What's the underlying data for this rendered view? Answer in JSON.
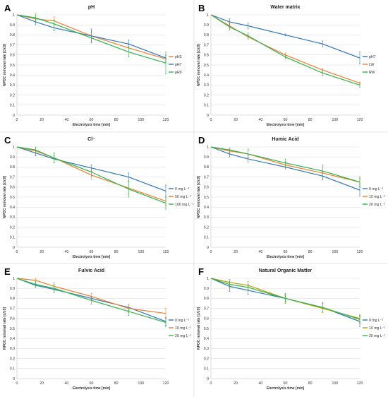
{
  "colors": {
    "blue": "#2e75b6",
    "orange": "#ed7d31",
    "green": "#2fb34a",
    "olive": "#b5a200"
  },
  "chart_data": [
    {
      "letter": "A",
      "type": "line",
      "title": "pH",
      "xlabel": "Electrolysis time [min]",
      "ylabel": "NPOC removal rate [c/c0]",
      "xlim": [
        0,
        120
      ],
      "ylim": [
        0,
        1
      ],
      "xticks": [
        "0",
        "20",
        "40",
        "60",
        "80",
        "100",
        "120"
      ],
      "yticks": [
        "0",
        "0.1",
        "0.2",
        "0.3",
        "0.4",
        "0.5",
        "0.6",
        "0.7",
        "0.8",
        "0.9",
        "1"
      ],
      "x": [
        0,
        15,
        30,
        60,
        90,
        120
      ],
      "series": [
        {
          "name": "pH3",
          "color": "#ed7d31",
          "values": [
            1,
            0.96,
            0.94,
            0.79,
            0.67,
            0.56
          ],
          "err": [
            0,
            0.03,
            0.04,
            0.05,
            0.04,
            0.04
          ]
        },
        {
          "name": "pH7",
          "color": "#2e75b6",
          "values": [
            1,
            0.93,
            0.87,
            0.79,
            0.71,
            0.57
          ],
          "err": [
            0,
            0.03,
            0.03,
            0.07,
            0.04,
            0.03
          ]
        },
        {
          "name": "pH9",
          "color": "#2fb34a",
          "values": [
            1,
            0.97,
            0.91,
            0.77,
            0.63,
            0.52
          ],
          "err": [
            0,
            0.04,
            0.04,
            0.05,
            0.05,
            0.11
          ]
        }
      ]
    },
    {
      "letter": "B",
      "type": "line",
      "title": "Water matrix",
      "xlabel": "Electrolysis time [min]",
      "ylabel": "NPOC removal rate [c/c0]",
      "xlim": [
        0,
        120
      ],
      "ylim": [
        0,
        1
      ],
      "xticks": [
        "0",
        "20",
        "40",
        "60",
        "80",
        "100",
        "120"
      ],
      "yticks": [
        "0",
        "0.1",
        "0.2",
        "0.3",
        "0.4",
        "0.5",
        "0.6",
        "0.7",
        "0.8",
        "0.9",
        "1"
      ],
      "x": [
        0,
        15,
        30,
        60,
        90,
        120
      ],
      "series": [
        {
          "name": "pH7",
          "color": "#2e75b6",
          "values": [
            1,
            0.93,
            0.89,
            0.8,
            0.71,
            0.57
          ],
          "err": [
            0,
            0.03,
            0.03,
            0.01,
            0.03,
            0.06
          ]
        },
        {
          "name": "LW",
          "color": "#ed7d31",
          "values": [
            1,
            0.89,
            0.78,
            0.6,
            0.45,
            0.32
          ],
          "err": [
            0,
            0.03,
            0.02,
            0.02,
            0.02,
            0.01
          ]
        },
        {
          "name": "RW",
          "color": "#2fb34a",
          "values": [
            1,
            0.88,
            0.79,
            0.58,
            0.42,
            0.3
          ],
          "err": [
            0,
            0.03,
            0.03,
            0.02,
            0.03,
            0.02
          ]
        }
      ]
    },
    {
      "letter": "C",
      "type": "line",
      "title": "Cl⁻",
      "xlabel": "Electrolysis time [min]",
      "ylabel": "NPOC removal rate [c/c0]",
      "xlim": [
        0,
        120
      ],
      "ylim": [
        0,
        1
      ],
      "xticks": [
        "0",
        "20",
        "40",
        "60",
        "80",
        "100",
        "120"
      ],
      "yticks": [
        "0",
        "0.1",
        "0.2",
        "0.3",
        "0.4",
        "0.5",
        "0.6",
        "0.7",
        "0.8",
        "0.9",
        "1"
      ],
      "x": [
        0,
        15,
        30,
        60,
        90,
        120
      ],
      "series": [
        {
          "name": "0 mg L⁻¹",
          "color": "#2e75b6",
          "values": [
            1,
            0.94,
            0.88,
            0.79,
            0.7,
            0.56
          ],
          "err": [
            0,
            0.03,
            0.04,
            0.03,
            0.04,
            0.06
          ]
        },
        {
          "name": "50 mg L⁻¹",
          "color": "#ed7d31",
          "values": [
            1,
            0.96,
            0.89,
            0.72,
            0.59,
            0.46
          ],
          "err": [
            0,
            0.03,
            0.05,
            0.04,
            0.06,
            0.05
          ]
        },
        {
          "name": "100 mg L⁻¹",
          "color": "#2fb34a",
          "values": [
            1,
            0.97,
            0.89,
            0.75,
            0.58,
            0.44
          ],
          "err": [
            0,
            0.03,
            0.05,
            0.04,
            0.08,
            0.06
          ]
        }
      ]
    },
    {
      "letter": "D",
      "type": "line",
      "title": "Humic Acid",
      "xlabel": "Electrolysis time [min]",
      "ylabel": "NPOC removal rate [c/c0]",
      "xlim": [
        0,
        120
      ],
      "ylim": [
        0,
        1
      ],
      "xticks": [
        "0",
        "20",
        "40",
        "60",
        "80",
        "100",
        "120"
      ],
      "yticks": [
        "0",
        "0.1",
        "0.2",
        "0.3",
        "0.4",
        "0.5",
        "0.6",
        "0.7",
        "0.8",
        "0.9",
        "1"
      ],
      "x": [
        0,
        15,
        30,
        60,
        90,
        120
      ],
      "series": [
        {
          "name": "0 mg L⁻¹",
          "color": "#2e75b6",
          "values": [
            1,
            0.93,
            0.88,
            0.8,
            0.71,
            0.57
          ],
          "err": [
            0,
            0.03,
            0.03,
            0.02,
            0.04,
            0.06
          ]
        },
        {
          "name": "10 mg L⁻¹",
          "color": "#ed7d31",
          "values": [
            1,
            0.96,
            0.93,
            0.82,
            0.74,
            0.65
          ],
          "err": [
            0,
            0.02,
            0.05,
            0.03,
            0.05,
            0.04
          ]
        },
        {
          "name": "20 mg L⁻¹",
          "color": "#2fb34a",
          "values": [
            1,
            0.97,
            0.93,
            0.84,
            0.76,
            0.65
          ],
          "err": [
            0,
            0.02,
            0.04,
            0.04,
            0.06,
            0.05
          ]
        }
      ]
    },
    {
      "letter": "E",
      "type": "line",
      "title": "Fulvic Acid",
      "xlabel": "Electrolysis time [min]",
      "ylabel": "NPOC removal rate [c/c0]",
      "xlim": [
        0,
        120
      ],
      "ylim": [
        0,
        1
      ],
      "xticks": [
        "0",
        "20",
        "40",
        "60",
        "80",
        "100",
        "120"
      ],
      "yticks": [
        "0",
        "0.1",
        "0.2",
        "0.3",
        "0.4",
        "0.5",
        "0.6",
        "0.7",
        "0.8",
        "0.9",
        "1"
      ],
      "x": [
        0,
        15,
        30,
        60,
        90,
        120
      ],
      "series": [
        {
          "name": "0 mg L⁻¹",
          "color": "#2e75b6",
          "values": [
            1,
            0.93,
            0.89,
            0.8,
            0.71,
            0.57
          ],
          "err": [
            0,
            0.02,
            0.03,
            0.02,
            0.03,
            0.04
          ]
        },
        {
          "name": "10 mg L⁻¹",
          "color": "#ed7d31",
          "values": [
            1,
            0.98,
            0.92,
            0.82,
            0.7,
            0.65
          ],
          "err": [
            0,
            0.02,
            0.04,
            0.03,
            0.04,
            0.05
          ]
        },
        {
          "name": "20 mg L⁻¹",
          "color": "#2fb34a",
          "values": [
            1,
            0.94,
            0.9,
            0.78,
            0.67,
            0.56
          ],
          "err": [
            0,
            0.03,
            0.04,
            0.04,
            0.04,
            0.04
          ]
        }
      ]
    },
    {
      "letter": "F",
      "type": "line",
      "title": "Natural Organic Matter",
      "xlabel": "Electrolysis time [min]",
      "ylabel": "NPOC removal rate [c/c0]",
      "xlim": [
        0,
        120
      ],
      "ylim": [
        0,
        1
      ],
      "xticks": [
        "0",
        "20",
        "40",
        "60",
        "80",
        "100",
        "120"
      ],
      "yticks": [
        "0",
        "0.1",
        "0.2",
        "0.3",
        "0.4",
        "0.5",
        "0.6",
        "0.7",
        "0.8",
        "0.9",
        "1"
      ],
      "x": [
        0,
        15,
        30,
        60,
        90,
        120
      ],
      "series": [
        {
          "name": "0 mg L⁻¹",
          "color": "#2e75b6",
          "values": [
            1,
            0.92,
            0.88,
            0.8,
            0.71,
            0.57
          ],
          "err": [
            0,
            0.05,
            0.04,
            0.03,
            0.05,
            0.05
          ]
        },
        {
          "name": "10 mg L⁻¹",
          "color": "#b5a200",
          "values": [
            1,
            0.96,
            0.93,
            0.8,
            0.7,
            0.6
          ],
          "err": [
            0,
            0.03,
            0.04,
            0.04,
            0.04,
            0.04
          ]
        },
        {
          "name": "20 mg L⁻¹",
          "color": "#2fb34a",
          "values": [
            1,
            0.94,
            0.91,
            0.8,
            0.71,
            0.59
          ],
          "err": [
            0,
            0.03,
            0.03,
            0.05,
            0.04,
            0.04
          ]
        }
      ]
    }
  ]
}
